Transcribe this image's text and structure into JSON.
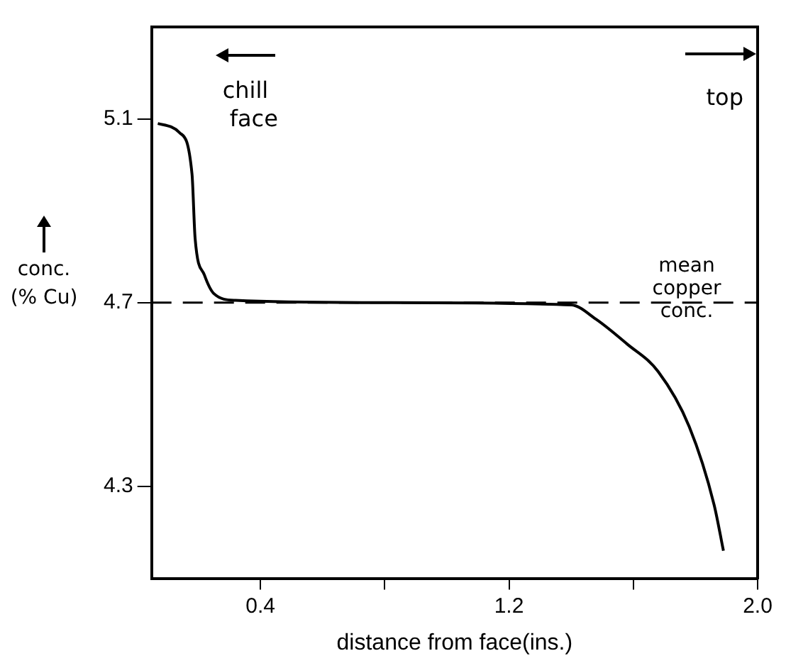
{
  "chart_data": {
    "type": "line",
    "xlabel": "distance from face(ins.)",
    "ylabel": "conc. (% Cu)",
    "x": [
      0.07,
      0.14,
      0.18,
      0.19,
      0.22,
      0.25,
      0.32,
      0.8,
      1.4,
      1.48,
      1.58,
      1.68,
      1.78,
      1.86,
      1.89
    ],
    "series": [
      {
        "color": "#000000",
        "values": [
          5.09,
          5.07,
          4.98,
          4.84,
          4.76,
          4.72,
          4.705,
          4.7,
          4.695,
          4.664,
          4.61,
          4.55,
          4.43,
          4.26,
          4.16
        ]
      }
    ],
    "xlim": [
      0.05,
      2.0
    ],
    "xticks": [
      0.4,
      {
        "value": 0.8,
        "label": null
      },
      1.2,
      {
        "value": 1.6,
        "label": null
      },
      "2.0"
    ],
    "ylim": [
      4.1,
      5.3
    ],
    "yticks": [
      4.3,
      4.7,
      5.1
    ],
    "ref_lines": [
      {
        "axis": "y",
        "value": 4.7,
        "label": "mean copper conc.",
        "line_style": "dashed",
        "color": "#000000"
      }
    ],
    "annotations": [
      "chill face",
      "top"
    ],
    "grid": false,
    "legend": false,
    "marker": "none",
    "line_style": "solid"
  }
}
